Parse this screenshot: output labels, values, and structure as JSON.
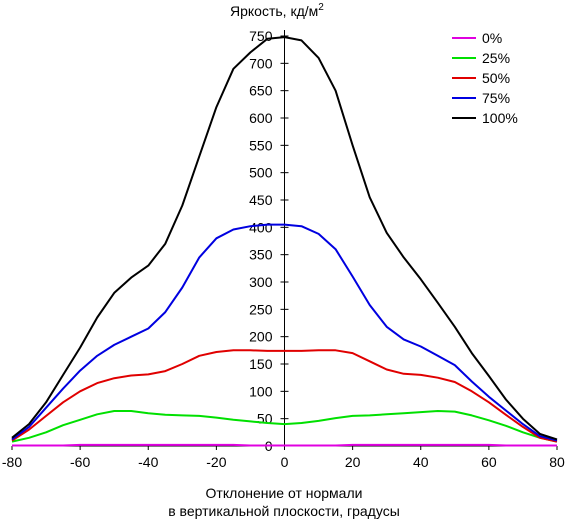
{
  "chart_data": {
    "type": "line",
    "ylabel": "Яркость, кд/м",
    "ylabel_sup": "2",
    "xlabel_line1": "Отклонение от нормали",
    "xlabel_line2": "в вертикальной плоскости, градусы",
    "xlim": [
      -80,
      80
    ],
    "ylim": [
      0,
      750
    ],
    "xticks": [
      "-80",
      "-60",
      "-40",
      "-20",
      "0",
      "20",
      "40",
      "60",
      "80"
    ],
    "yticks": [
      "0",
      "50",
      "100",
      "150",
      "200",
      "250",
      "300",
      "350",
      "400",
      "450",
      "500",
      "550",
      "600",
      "650",
      "700",
      "750"
    ],
    "legend_position": "top-right",
    "x": [
      -80,
      -75,
      -70,
      -65,
      -60,
      -55,
      -50,
      -45,
      -40,
      -35,
      -30,
      -25,
      -20,
      -15,
      -10,
      -5,
      0,
      5,
      10,
      15,
      20,
      25,
      30,
      35,
      40,
      45,
      50,
      55,
      60,
      65,
      70,
      75,
      80
    ],
    "series": [
      {
        "name": "0%",
        "color": "#e000e0",
        "values": [
          1,
          1,
          1,
          1,
          2,
          2,
          2,
          2,
          2,
          2,
          2,
          2,
          2,
          2,
          1,
          1,
          1,
          1,
          1,
          1,
          2,
          2,
          2,
          2,
          2,
          2,
          2,
          2,
          2,
          1,
          1,
          1,
          1
        ]
      },
      {
        "name": "25%",
        "color": "#00e000",
        "values": [
          8,
          15,
          25,
          38,
          48,
          58,
          64,
          64,
          60,
          57,
          56,
          55,
          52,
          48,
          45,
          42,
          40,
          42,
          46,
          51,
          55,
          56,
          58,
          60,
          62,
          64,
          63,
          56,
          47,
          37,
          25,
          15,
          8
        ]
      },
      {
        "name": "50%",
        "color": "#e00000",
        "values": [
          10,
          30,
          55,
          80,
          100,
          115,
          124,
          129,
          131,
          137,
          150,
          165,
          172,
          175,
          175,
          174,
          174,
          174,
          175,
          175,
          170,
          155,
          140,
          132,
          130,
          125,
          117,
          100,
          80,
          57,
          35,
          15,
          8
        ]
      },
      {
        "name": "75%",
        "color": "#0000e0",
        "values": [
          12,
          35,
          70,
          105,
          138,
          165,
          185,
          200,
          215,
          245,
          290,
          345,
          380,
          396,
          402,
          405,
          405,
          402,
          388,
          360,
          310,
          258,
          218,
          195,
          182,
          165,
          148,
          118,
          90,
          65,
          40,
          18,
          10
        ]
      },
      {
        "name": "100%",
        "color": "#000000",
        "values": [
          15,
          40,
          80,
          130,
          180,
          235,
          280,
          308,
          330,
          370,
          440,
          530,
          620,
          690,
          720,
          745,
          748,
          742,
          710,
          650,
          550,
          455,
          390,
          345,
          305,
          262,
          218,
          170,
          128,
          85,
          50,
          22,
          12
        ]
      }
    ]
  }
}
